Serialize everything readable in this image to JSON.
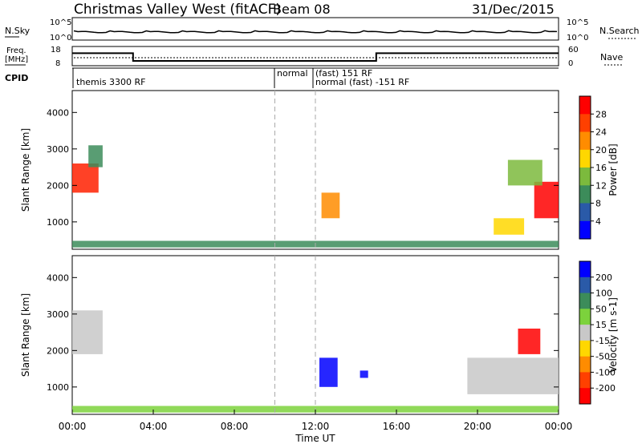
{
  "header": {
    "title": "Christmas Valley West (fitACF)",
    "beam": "Beam 08",
    "date": "31/Dec/2015"
  },
  "nsky": {
    "label": "N.Sky",
    "right_label": "N.Search",
    "ticks_left": [
      "10^5",
      "10^0"
    ],
    "ticks_right": [
      "10^5",
      "10^0"
    ]
  },
  "freq": {
    "label_line1": "Freq.",
    "label_line2": "[MHz]",
    "ticks_left": [
      "18",
      "8"
    ],
    "right_label": "Nave",
    "ticks_right": [
      "60",
      "0"
    ],
    "step_values": [
      {
        "x": 0.0,
        "y": 14.5
      },
      {
        "x": 3.0,
        "y": 14.5
      },
      {
        "x": 3.0,
        "y": 10.5
      },
      {
        "x": 15.0,
        "y": 10.5
      },
      {
        "x": 15.0,
        "y": 14.5
      },
      {
        "x": 24.0,
        "y": 14.5
      }
    ]
  },
  "cpid": {
    "label": "CPID",
    "entries": [
      {
        "start_h": 0.0,
        "text": "themis 3300 RF"
      },
      {
        "start_h": 10.0,
        "text": "normal"
      },
      {
        "start_h": 12.0,
        "text": "(fast) 151 RF"
      },
      {
        "start_h": 12.0,
        "text": "normal (fast) -151 RF"
      }
    ]
  },
  "chart_data": [
    {
      "type": "heatmap",
      "name": "power",
      "ylabel": "Slant Range [km]",
      "yticks": [
        "4000",
        "3000",
        "2000",
        "1000"
      ],
      "ylim": [
        250,
        4600
      ],
      "xlim": [
        0,
        24
      ],
      "colorbar_label": "Power [dB]",
      "colorbar_ticks": [
        "28",
        "24",
        "20",
        "16",
        "12",
        "8",
        "4"
      ],
      "colorbar_colors": [
        "#ff0000",
        "#ff4000",
        "#ff8c00",
        "#ffd700",
        "#7cba3d",
        "#3c8c5a",
        "#2a5aa8",
        "#0000ff"
      ],
      "vlines_h": [
        10.0,
        12.0
      ],
      "regions": [
        {
          "t0": 0.0,
          "t1": 1.3,
          "r0": 1800,
          "r1": 2600,
          "color": "#ff2000"
        },
        {
          "t0": 0.8,
          "t1": 1.5,
          "r0": 2500,
          "r1": 3100,
          "color": "#3c8c5a"
        },
        {
          "t0": 12.3,
          "t1": 13.2,
          "r0": 1100,
          "r1": 1800,
          "color": "#ff8c00"
        },
        {
          "t0": 20.8,
          "t1": 22.3,
          "r0": 650,
          "r1": 1100,
          "color": "#ffd700"
        },
        {
          "t0": 22.8,
          "t1": 24.0,
          "r0": 1100,
          "r1": 2100,
          "color": "#ff0000"
        },
        {
          "t0": 21.5,
          "t1": 23.2,
          "r0": 2000,
          "r1": 2700,
          "color": "#7cba3d"
        },
        {
          "t0": 0.0,
          "t1": 24.0,
          "r0": 300,
          "r1": 480,
          "color": "#3c8c5a"
        }
      ]
    },
    {
      "type": "heatmap",
      "name": "velocity",
      "ylabel": "Slant Range [km]",
      "yticks": [
        "4000",
        "3000",
        "2000",
        "1000"
      ],
      "ylim": [
        250,
        4600
      ],
      "xlim": [
        0,
        24
      ],
      "xlabel": "Time UT",
      "xticks": [
        "00:00",
        "04:00",
        "08:00",
        "12:00",
        "16:00",
        "20:00",
        "00:00"
      ],
      "colorbar_label": "Velocity [m s-1]",
      "colorbar_ticks": [
        "200",
        "100",
        "50",
        "15",
        "-15",
        "-50",
        "-100",
        "-200"
      ],
      "colorbar_colors": [
        "#0000ff",
        "#2a5aa8",
        "#3c8c5a",
        "#7cd23c",
        "#c8c8c8",
        "#ffd700",
        "#ff8c00",
        "#ff4000",
        "#ff0000"
      ],
      "vlines_h": [
        10.0,
        12.0
      ],
      "regions": [
        {
          "t0": 0.0,
          "t1": 1.5,
          "r0": 1900,
          "r1": 3100,
          "color": "#c8c8c8"
        },
        {
          "t0": 12.2,
          "t1": 13.1,
          "r0": 1000,
          "r1": 1800,
          "color": "#0000ff"
        },
        {
          "t0": 14.2,
          "t1": 14.6,
          "r0": 1250,
          "r1": 1450,
          "color": "#0000ff"
        },
        {
          "t0": 22.0,
          "t1": 23.1,
          "r0": 1900,
          "r1": 2600,
          "color": "#ff0000"
        },
        {
          "t0": 19.5,
          "t1": 24.0,
          "r0": 800,
          "r1": 1800,
          "color": "#c8c8c8"
        },
        {
          "t0": 0.0,
          "t1": 24.0,
          "r0": 300,
          "r1": 480,
          "color": "#7cd23c"
        }
      ]
    }
  ]
}
